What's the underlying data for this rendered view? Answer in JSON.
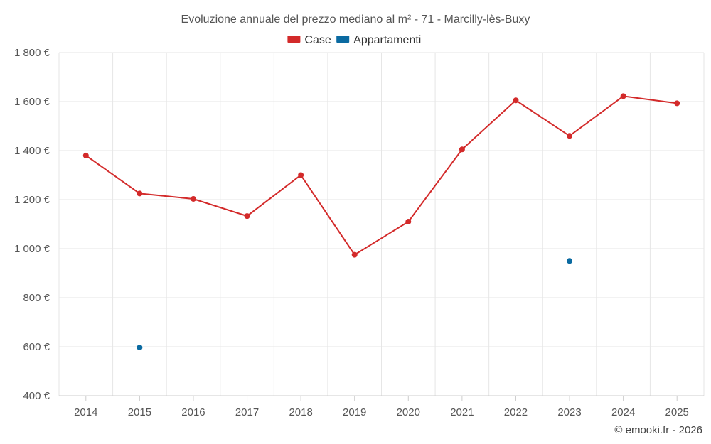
{
  "chart_data": {
    "type": "line",
    "title": "Evoluzione annuale del prezzo mediano al m² - 71 - Marcilly-lès-Buxy",
    "categories": [
      "2014",
      "2015",
      "2016",
      "2017",
      "2018",
      "2019",
      "2020",
      "2021",
      "2022",
      "2023",
      "2024",
      "2025"
    ],
    "ylim": [
      400,
      1800
    ],
    "yticks": [
      400,
      600,
      800,
      1000,
      1200,
      1400,
      1600,
      1800
    ],
    "ytick_labels": [
      "400 €",
      "600 €",
      "800 €",
      "1 000 €",
      "1 200 €",
      "1 400 €",
      "1 600 €",
      "1 800 €"
    ],
    "series": [
      {
        "name": "Case",
        "color": "#d32a2a",
        "values": [
          1380,
          1225,
          1203,
          1133,
          1300,
          975,
          1110,
          1405,
          1605,
          1460,
          1622,
          1593
        ]
      },
      {
        "name": "Appartamenti",
        "color": "#0a6aa1",
        "values": [
          null,
          597,
          null,
          null,
          null,
          null,
          null,
          null,
          null,
          950,
          null,
          null
        ]
      }
    ],
    "grid": true,
    "legend": "top-center"
  },
  "credit": "© emooki.fr - 2026"
}
